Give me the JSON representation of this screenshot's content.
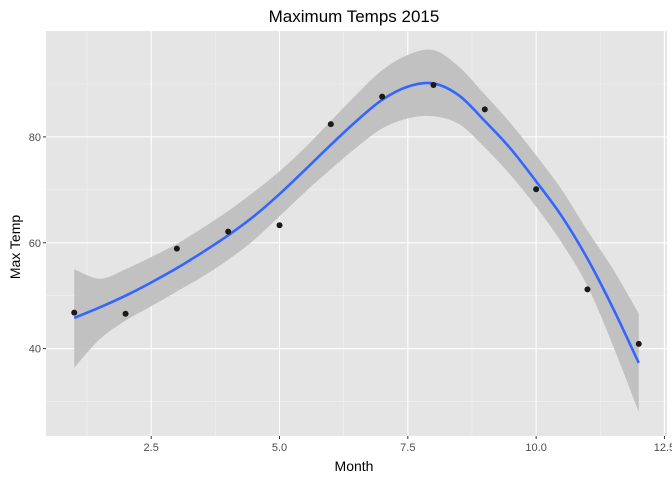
{
  "chart_data": {
    "type": "scatter",
    "title": "Maximum Temps 2015",
    "xlabel": "Month",
    "ylabel": "Max Temp",
    "xlim": [
      0.45,
      12.55
    ],
    "ylim": [
      23.5,
      100
    ],
    "x_ticks": [
      2.5,
      5.0,
      7.5,
      10.0,
      12.5
    ],
    "x_tick_labels": [
      "2.5",
      "5.0",
      "7.5",
      "10.0",
      "12.5"
    ],
    "y_ticks": [
      40,
      60,
      80
    ],
    "y_tick_labels": [
      "40",
      "60",
      "80"
    ],
    "grid": true,
    "points": {
      "x": [
        1,
        2,
        3,
        4,
        5,
        6,
        7,
        8,
        9,
        10,
        11,
        12
      ],
      "y": [
        46.8,
        46.6,
        58.9,
        62.1,
        63.3,
        82.4,
        87.6,
        89.8,
        85.2,
        70.1,
        51.2,
        40.9
      ]
    },
    "smooth_fit": {
      "x": [
        1,
        1.5,
        2,
        2.5,
        3,
        3.5,
        4,
        4.5,
        5,
        5.5,
        6,
        6.5,
        7,
        7.5,
        8,
        8.5,
        9,
        9.5,
        10,
        10.5,
        11,
        11.5,
        12
      ],
      "y": [
        45.8,
        47.8,
        50.0,
        52.5,
        55.2,
        58.2,
        61.4,
        65.0,
        69.2,
        73.8,
        78.5,
        83.0,
        87.0,
        89.5,
        90.1,
        87.8,
        83.0,
        77.8,
        71.6,
        65.0,
        57.0,
        47.6,
        37.3
      ],
      "lower": [
        36.4,
        41.8,
        45.3,
        48.0,
        50.8,
        53.6,
        56.8,
        60.5,
        65.0,
        69.6,
        73.9,
        78.0,
        81.6,
        83.5,
        83.9,
        82.4,
        78.0,
        72.8,
        66.8,
        60.0,
        51.8,
        40.5,
        28.0
      ],
      "upper": [
        55.0,
        53.2,
        55.0,
        57.3,
        59.8,
        62.8,
        66.0,
        69.6,
        73.5,
        78.0,
        83.0,
        88.0,
        92.6,
        95.5,
        96.4,
        93.2,
        88.0,
        82.6,
        76.5,
        70.0,
        62.3,
        55.0,
        46.6
      ]
    },
    "colors": {
      "panel_background": "#e5e5e5",
      "grid_major": "#ffffff",
      "grid_minor": "#f2f2f2",
      "fit_line": "#3366ff",
      "ribbon": "#bdbdbd",
      "points": "#1a1a1a"
    }
  }
}
